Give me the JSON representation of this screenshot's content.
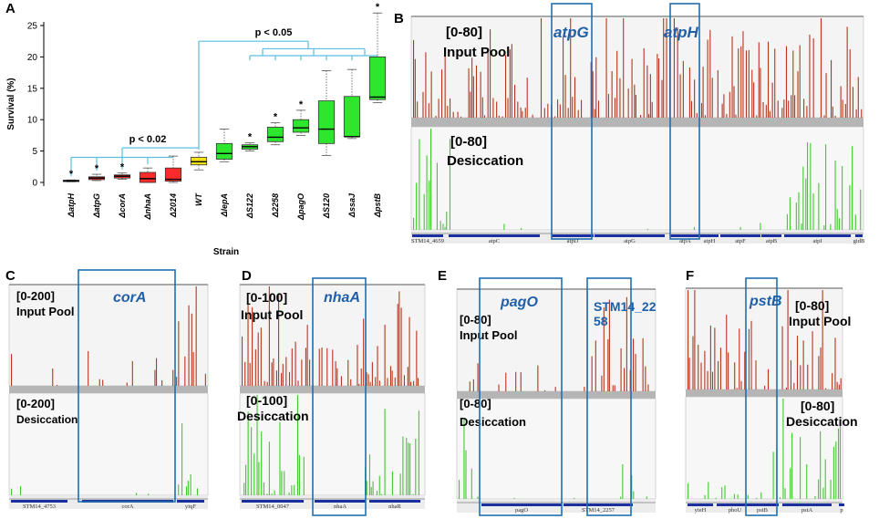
{
  "chart_data": [
    {
      "type": "box",
      "panel": "A",
      "ylabel": "Survival (%)",
      "xlabel": "Strain",
      "ylim": [
        0,
        25
      ],
      "yticks": [
        "0",
        "5",
        "10",
        "15",
        "20",
        "25"
      ],
      "categories": [
        "ΔatpH",
        "ΔatpG",
        "ΔcorA",
        "ΔnhaA",
        "Δ2014",
        "WT",
        "ΔlepA",
        "ΔS122",
        "Δ2258",
        "ΔpagO",
        "ΔS120",
        "ΔssaJ",
        "ΔpstB"
      ],
      "boxes": [
        {
          "strain": "ΔatpH",
          "min": 0.1,
          "q1": 0.15,
          "median": 0.25,
          "q3": 0.35,
          "max": 0.4,
          "color": "#ff2a2a",
          "star": true
        },
        {
          "strain": "ΔatpG",
          "min": 0.3,
          "q1": 0.45,
          "median": 0.7,
          "q3": 0.9,
          "max": 1.3,
          "color": "#ff2a2a",
          "star": true
        },
        {
          "strain": "ΔcorA",
          "min": 0.5,
          "q1": 0.7,
          "median": 1.0,
          "q3": 1.2,
          "max": 1.5,
          "color": "#ff2a2a",
          "star": true
        },
        {
          "strain": "ΔnhaA",
          "min": 0.0,
          "q1": 0.0,
          "median": 0.6,
          "q3": 1.6,
          "max": 2.3,
          "color": "#ff2a2a",
          "star": false
        },
        {
          "strain": "Δ2014",
          "min": 0.0,
          "q1": 0.2,
          "median": 0.5,
          "q3": 2.3,
          "max": 4.2,
          "color": "#ff2a2a",
          "star": false
        },
        {
          "strain": "WT",
          "min": 2.0,
          "q1": 2.8,
          "median": 3.3,
          "q3": 4.0,
          "max": 4.8,
          "color": "#f5e11a",
          "star": false
        },
        {
          "strain": "ΔlepA",
          "min": 3.3,
          "q1": 3.7,
          "median": 4.6,
          "q3": 6.2,
          "max": 8.5,
          "color": "#2fe62f",
          "star": false
        },
        {
          "strain": "ΔS122",
          "min": 5.0,
          "q1": 5.3,
          "median": 5.7,
          "q3": 6.0,
          "max": 6.3,
          "color": "#2fe62f",
          "star": true
        },
        {
          "strain": "Δ2258",
          "min": 6.0,
          "q1": 6.5,
          "median": 7.2,
          "q3": 8.8,
          "max": 9.5,
          "color": "#2fe62f",
          "star": true
        },
        {
          "strain": "ΔpagO",
          "min": 7.5,
          "q1": 8.0,
          "median": 8.7,
          "q3": 10.0,
          "max": 11.5,
          "color": "#2fe62f",
          "star": true
        },
        {
          "strain": "ΔS120",
          "min": 4.3,
          "q1": 6.2,
          "median": 8.5,
          "q3": 13.0,
          "max": 17.8,
          "color": "#2fe62f",
          "star": false
        },
        {
          "strain": "ΔssaJ",
          "min": 7.0,
          "q1": 7.3,
          "median": 7.3,
          "q3": 13.7,
          "max": 18.0,
          "color": "#2fe62f",
          "star": false
        },
        {
          "strain": "ΔpstB",
          "min": 12.7,
          "q1": 13.2,
          "median": 13.6,
          "q3": 20.0,
          "max": 27.0,
          "color": "#2fe62f",
          "star": true
        }
      ],
      "comparisons": [
        {
          "label": "p < 0.02",
          "group": [
            "ΔatpH",
            "ΔatpG",
            "ΔcorA",
            "ΔnhaA",
            "Δ2014"
          ],
          "ref": "WT",
          "y": 5.5
        },
        {
          "label": "p < 0.05",
          "group": [
            "ΔS122",
            "Δ2258",
            "ΔpagO",
            "ΔS120",
            "ΔssaJ",
            "ΔpstB"
          ],
          "ref": "WT",
          "y": 22.5
        }
      ]
    },
    {
      "type": "track",
      "panel": "B",
      "tracks": [
        {
          "range": "[0-80]",
          "label": "Input Pool"
        },
        {
          "range": "[0-80]",
          "label": "Desiccation"
        }
      ],
      "genes_highlighted": [
        "atpG",
        "atpH"
      ],
      "annotations": [
        "STM14_4659",
        "atpC",
        "atpD",
        "atpG",
        "atpA",
        "atpH",
        "atpF",
        "atpB",
        "atpI",
        "gidB"
      ]
    },
    {
      "type": "track",
      "panel": "C",
      "tracks": [
        {
          "range": "[0-200]",
          "label": "Input Pool"
        },
        {
          "range": "[0-200]",
          "label": "Desiccation"
        }
      ],
      "genes_highlighted": [
        "corA"
      ],
      "annotations": [
        "STM14_4753",
        "corA",
        "yiqF"
      ]
    },
    {
      "type": "track",
      "panel": "D",
      "tracks": [
        {
          "range": "[0-100]",
          "label": "Input Pool"
        },
        {
          "range": "[0-100]",
          "label": "Desiccation"
        }
      ],
      "genes_highlighted": [
        "nhaA"
      ],
      "annotations": [
        "STM14_0047",
        "nhaA",
        "nhaR"
      ]
    },
    {
      "type": "track",
      "panel": "E",
      "tracks": [
        {
          "range": "[0-80]",
          "label": "Input Pool"
        },
        {
          "range": "[0-80]",
          "label": "Desiccation"
        }
      ],
      "genes_highlighted": [
        "pagO",
        "STM14_22",
        "58"
      ],
      "annotations": [
        "pagO",
        "STM14_2257"
      ]
    },
    {
      "type": "track",
      "panel": "F",
      "tracks": [
        {
          "range": "[0-80]",
          "label": "Input Pool"
        },
        {
          "range": "[0-80]",
          "label": "Desiccation"
        }
      ],
      "genes_highlighted": [
        "pstB"
      ],
      "annotations": [
        "yieH",
        "phoU",
        "pstB",
        "pstA",
        "p"
      ]
    }
  ],
  "colors": {
    "input_bar": "#b5351e",
    "desic_bar": "#3ecb2a",
    "highlight_box": "#1f6fb0",
    "bracket": "#5bbfe0",
    "gene_bar": "#1a2fa0"
  }
}
